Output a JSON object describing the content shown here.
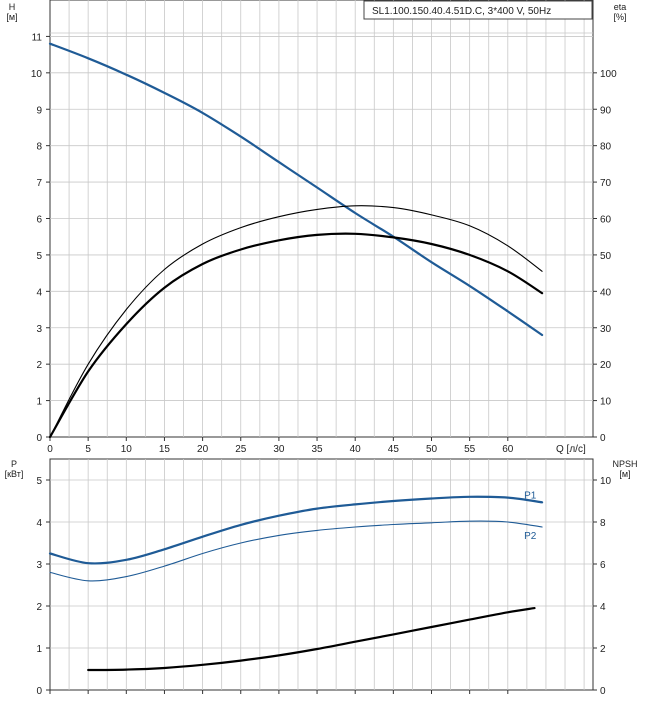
{
  "model_label": "SL1.100.150.40.4.51D.C, 3*400 V, 50Hz",
  "colors": {
    "blue": "#1f5b96",
    "black": "#000000",
    "grid": "#c8c8c8",
    "axis": "#333333"
  },
  "chart_data": [
    {
      "type": "line",
      "id": "head-efficiency",
      "x_label": "Q [л/с]",
      "xlim": [
        0,
        65
      ],
      "x_ticks": [
        0,
        5,
        10,
        15,
        20,
        25,
        30,
        35,
        40,
        45,
        50,
        55,
        60
      ],
      "y_left": {
        "label_top": "H",
        "label_unit": "[м]",
        "lim": [
          0,
          12
        ],
        "ticks": [
          0,
          1,
          2,
          3,
          4,
          5,
          6,
          7,
          8,
          9,
          10,
          11
        ]
      },
      "y_right": {
        "label_top": "eta",
        "label_unit": "[%]",
        "lim": [
          0,
          120
        ],
        "ticks": [
          0,
          10,
          20,
          30,
          40,
          50,
          60,
          70,
          80,
          90,
          100
        ]
      },
      "grid": true,
      "series": [
        {
          "axis": "left",
          "color": "blue",
          "width": 2.2,
          "x": [
            0,
            5,
            10,
            15,
            20,
            25,
            30,
            35,
            40,
            45,
            50,
            55,
            60,
            64.5
          ],
          "y": [
            10.8,
            10.4,
            9.95,
            9.45,
            8.9,
            8.25,
            7.55,
            6.85,
            6.15,
            5.5,
            4.8,
            4.15,
            3.45,
            2.8
          ]
        },
        {
          "axis": "right",
          "color": "black",
          "width": 1.1,
          "x": [
            0,
            5,
            10,
            15,
            20,
            25,
            30,
            35,
            40,
            45,
            50,
            55,
            60,
            64.5
          ],
          "y": [
            0,
            20,
            35,
            46,
            53,
            57.5,
            60.5,
            62.5,
            63.5,
            63,
            61,
            58,
            52.5,
            45.5
          ]
        },
        {
          "axis": "right",
          "color": "black",
          "width": 2.2,
          "x": [
            0,
            5,
            10,
            15,
            20,
            25,
            30,
            35,
            40,
            45,
            50,
            55,
            60,
            64.5
          ],
          "y": [
            0,
            18,
            31,
            41,
            47.5,
            51.5,
            54,
            55.5,
            55.8,
            54.8,
            53,
            50,
            45.5,
            39.5
          ]
        }
      ]
    },
    {
      "type": "line",
      "id": "power-npsh",
      "xlim": [
        0,
        65
      ],
      "x_ticks": [
        0,
        5,
        10,
        15,
        20,
        25,
        30,
        35,
        40,
        45,
        50,
        55,
        60
      ],
      "y_left": {
        "label_top": "P",
        "label_unit": "[кВт]",
        "lim": [
          0,
          5.5
        ],
        "ticks": [
          0,
          1,
          2,
          3,
          4,
          5
        ]
      },
      "y_right": {
        "label_top": "NPSH",
        "label_unit": "[м]",
        "lim": [
          0,
          11
        ],
        "ticks": [
          0,
          2,
          4,
          6,
          8,
          10
        ]
      },
      "grid": true,
      "series": [
        {
          "name": "P1",
          "axis": "left",
          "color": "blue",
          "width": 2.2,
          "x": [
            0,
            5,
            10,
            15,
            20,
            25,
            30,
            35,
            40,
            45,
            50,
            55,
            60,
            64.5
          ],
          "y": [
            3.25,
            3.02,
            3.1,
            3.35,
            3.65,
            3.93,
            4.15,
            4.32,
            4.42,
            4.5,
            4.56,
            4.6,
            4.58,
            4.47
          ]
        },
        {
          "name": "P2",
          "axis": "left",
          "color": "blue",
          "width": 1.1,
          "x": [
            0,
            5,
            10,
            15,
            20,
            25,
            30,
            35,
            40,
            45,
            50,
            55,
            60,
            64.5
          ],
          "y": [
            2.8,
            2.6,
            2.7,
            2.95,
            3.25,
            3.5,
            3.68,
            3.8,
            3.88,
            3.94,
            3.98,
            4.02,
            4.0,
            3.88
          ]
        },
        {
          "axis": "right",
          "color": "black",
          "width": 2.2,
          "x": [
            5,
            10,
            15,
            20,
            25,
            30,
            35,
            40,
            45,
            50,
            55,
            60,
            63.5
          ],
          "y": [
            0.95,
            0.97,
            1.05,
            1.2,
            1.4,
            1.65,
            1.95,
            2.3,
            2.65,
            3.0,
            3.35,
            3.7,
            3.9
          ]
        }
      ]
    }
  ]
}
